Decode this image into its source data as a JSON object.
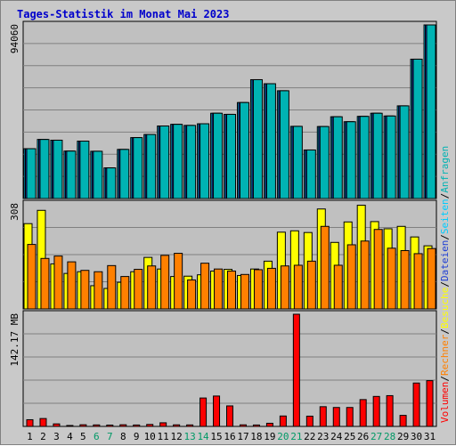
{
  "chart_data": {
    "type": "bar",
    "title": "Tages-Statistik im Monat Mai 2023",
    "categories": [
      "1",
      "2",
      "3",
      "4",
      "5",
      "6",
      "7",
      "8",
      "9",
      "10",
      "11",
      "12",
      "13",
      "14",
      "15",
      "16",
      "17",
      "18",
      "19",
      "20",
      "21",
      "22",
      "23",
      "24",
      "25",
      "26",
      "27",
      "28",
      "29",
      "30",
      "31"
    ],
    "weekend_days": [
      "6",
      "7",
      "13",
      "14",
      "20",
      "21",
      "27",
      "28"
    ],
    "colors": {
      "anfragen": "#00ccff",
      "dateien": "#1f3fd4",
      "seiten": "#00b3b3",
      "besuche": "#ffff00",
      "rechner": "#ff8000",
      "volumen": "#ff0000",
      "weekday_label": "#000000",
      "weekend_label": "#009966",
      "title": "#0000cc",
      "panel_bg": "#c0c0c0"
    },
    "panels": [
      {
        "id": "requests",
        "axis_label": "94060",
        "ylim": [
          0,
          94060
        ],
        "series": [
          {
            "key": "anfragen",
            "values": [
              27000,
              32000,
              31600,
              25700,
              31100,
              25600,
              16600,
              26600,
              33000,
              34700,
              39300,
              40200,
              39600,
              40500,
              46200,
              45600,
              52000,
              64400,
              62200,
              58400,
              39100,
              26300,
              39000,
              44300,
              41600,
              44500,
              46200,
              44700,
              50200,
              75500,
              94060
            ]
          },
          {
            "key": "dateien",
            "values": [
              27000,
              32000,
              31600,
              25700,
              31100,
              25600,
              16600,
              26600,
              33000,
              34700,
              39300,
              40200,
              39600,
              40500,
              46200,
              45600,
              52000,
              64400,
              62200,
              58400,
              39100,
              26300,
              39000,
              44300,
              41600,
              44500,
              46200,
              44700,
              50200,
              75500,
              94060
            ]
          },
          {
            "key": "seiten",
            "values": [
              27000,
              32000,
              31600,
              25700,
              31100,
              25600,
              16600,
              26600,
              33000,
              34700,
              39300,
              40200,
              39600,
              40500,
              46200,
              45600,
              52000,
              64400,
              62200,
              58400,
              39100,
              26300,
              39000,
              44300,
              41600,
              44500,
              46200,
              44700,
              50200,
              75500,
              94060
            ]
          }
        ]
      },
      {
        "id": "visits",
        "axis_label": "308",
        "ylim": [
          0,
          308
        ],
        "series": [
          {
            "key": "besuche",
            "values": [
              250,
              289,
              132,
              104,
              109,
              68,
              60,
              78,
              109,
              151,
              117,
              95,
              96,
              100,
              111,
              116,
              98,
              117,
              140,
              225,
              229,
              224,
              293,
              195,
              255,
              304,
              256,
              235,
              242,
              211,
              185
            ]
          },
          {
            "key": "rechner",
            "values": [
              189,
              148,
              155,
              138,
              113,
              109,
              127,
              95,
              116,
              126,
              157,
              163,
              85,
              134,
              117,
              111,
              101,
              115,
              119,
              126,
              128,
              140,
              242,
              128,
              188,
              199,
              233,
              178,
              171,
              162,
              177
            ]
          }
        ]
      },
      {
        "id": "volume",
        "axis_label": "142.17 MB",
        "ylim": [
          0,
          142.17
        ],
        "series": [
          {
            "key": "volumen",
            "values": [
              8.5,
              10.0,
              3.2,
              1.2,
              2.1,
              1.9,
              1.7,
              2.1,
              1.8,
              2.5,
              4.6,
              2.0,
              1.9,
              36.0,
              38.5,
              26.0,
              2.0,
              1.8,
              4.0,
              13.2,
              142.17,
              13.0,
              25.0,
              24.0,
              24.0,
              34.0,
              38.0,
              39.0,
              14.0,
              55.0,
              58.0
            ]
          }
        ]
      }
    ],
    "legend": {
      "top": [
        {
          "label": "Anfragen",
          "color_key": "seiten"
        },
        {
          "label": "/",
          "color_key": "weekday_label"
        },
        {
          "label": "Seiten",
          "color_key": "anfragen"
        },
        {
          "label": "/",
          "color_key": "weekday_label"
        },
        {
          "label": "Dateien",
          "color_key": "dateien"
        },
        {
          "label": "/",
          "color_key": "weekday_label"
        },
        {
          "label": "Besuche",
          "color_key": "besuche"
        },
        {
          "label": "/",
          "color_key": "weekday_label"
        },
        {
          "label": "Rechner",
          "color_key": "rechner"
        },
        {
          "label": "/",
          "color_key": "weekday_label"
        },
        {
          "label": "Volumen",
          "color_key": "volumen"
        }
      ]
    }
  }
}
